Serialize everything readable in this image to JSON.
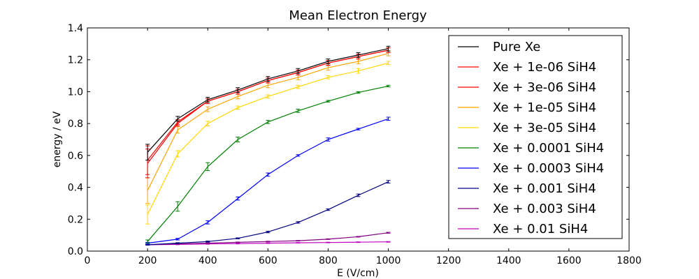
{
  "chart_data": {
    "type": "line",
    "title": "Mean Electron Energy",
    "xlabel": "E (V/cm)",
    "ylabel": "energy / eV",
    "xlim": [
      0,
      1800
    ],
    "ylim": [
      0.0,
      1.4
    ],
    "xticks": [
      0,
      200,
      400,
      600,
      800,
      1000,
      1200,
      1400,
      1600,
      1800
    ],
    "yticks": [
      0.0,
      0.2,
      0.4,
      0.6,
      0.8,
      1.0,
      1.2,
      1.4
    ],
    "xtick_labels": [
      "0",
      "200",
      "400",
      "600",
      "800",
      "1000",
      "1200",
      "1400",
      "1600",
      "1800"
    ],
    "ytick_labels": [
      "0.0",
      "0.2",
      "0.4",
      "0.6",
      "0.8",
      "1.0",
      "1.2",
      "1.4"
    ],
    "grid": false,
    "legend_position": "right",
    "x": [
      200,
      300,
      400,
      500,
      600,
      700,
      800,
      900,
      1000
    ],
    "series": [
      {
        "name": "Pure Xe",
        "color": "#000000",
        "values": [
          0.62,
          0.83,
          0.95,
          1.01,
          1.08,
          1.13,
          1.19,
          1.23,
          1.27
        ],
        "errors": [
          0.05,
          0.015,
          0.015,
          0.015,
          0.015,
          0.015,
          0.015,
          0.015,
          0.015
        ]
      },
      {
        "name": "Xe + 1e-06 SiH4",
        "color": "#ff0000",
        "values": [
          0.57,
          0.81,
          0.94,
          1.0,
          1.07,
          1.12,
          1.18,
          1.22,
          1.26
        ],
        "errors": [
          0.09,
          0.015,
          0.015,
          0.015,
          0.015,
          0.015,
          0.015,
          0.015,
          0.015
        ]
      },
      {
        "name": "Xe + 3e-06 SiH4",
        "color": "#ff0000",
        "values": [
          0.55,
          0.8,
          0.94,
          1.0,
          1.07,
          1.12,
          1.18,
          1.22,
          1.26
        ],
        "errors": [
          0.09,
          0.015,
          0.015,
          0.015,
          0.015,
          0.015,
          0.015,
          0.015,
          0.015
        ]
      },
      {
        "name": "Xe + 1e-05 SiH4",
        "color": "#ffa500",
        "values": [
          0.38,
          0.76,
          0.89,
          0.97,
          1.04,
          1.09,
          1.15,
          1.19,
          1.24
        ],
        "errors": [
          0.08,
          0.02,
          0.015,
          0.015,
          0.015,
          0.015,
          0.015,
          0.015,
          0.015
        ]
      },
      {
        "name": "Xe + 3e-05 SiH4",
        "color": "#ffd700",
        "values": [
          0.23,
          0.61,
          0.8,
          0.9,
          0.97,
          1.03,
          1.09,
          1.13,
          1.18
        ],
        "errors": [
          0.06,
          0.02,
          0.015,
          0.01,
          0.01,
          0.01,
          0.01,
          0.015,
          0.01
        ]
      },
      {
        "name": "Xe + 0.0001 SiH4",
        "color": "#008000",
        "values": [
          0.06,
          0.28,
          0.53,
          0.7,
          0.81,
          0.88,
          0.94,
          0.995,
          1.035
        ],
        "errors": [
          0.01,
          0.03,
          0.025,
          0.015,
          0.01,
          0.01,
          0.005,
          0.005,
          0.005
        ]
      },
      {
        "name": "Xe + 0.0003 SiH4",
        "color": "#0000ff",
        "values": [
          0.05,
          0.075,
          0.18,
          0.33,
          0.48,
          0.6,
          0.7,
          0.765,
          0.83
        ],
        "errors": [
          0.005,
          0.005,
          0.01,
          0.01,
          0.01,
          0.005,
          0.01,
          0.005,
          0.01
        ]
      },
      {
        "name": "Xe + 0.001 SiH4",
        "color": "#000080",
        "values": [
          0.04,
          0.05,
          0.06,
          0.08,
          0.12,
          0.18,
          0.26,
          0.35,
          0.435
        ],
        "errors": [
          0.003,
          0.003,
          0.003,
          0.003,
          0.005,
          0.005,
          0.005,
          0.008,
          0.008
        ]
      },
      {
        "name": "Xe + 0.003 SiH4",
        "color": "#800080",
        "values": [
          0.04,
          0.045,
          0.05,
          0.055,
          0.06,
          0.065,
          0.075,
          0.09,
          0.115
        ],
        "errors": [
          0.002,
          0.002,
          0.002,
          0.002,
          0.002,
          0.002,
          0.002,
          0.002,
          0.003
        ]
      },
      {
        "name": "Xe + 0.01 SiH4",
        "color": "#bf00bf",
        "values": [
          0.04,
          0.042,
          0.045,
          0.047,
          0.05,
          0.052,
          0.054,
          0.056,
          0.058
        ],
        "errors": [
          0.002,
          0.002,
          0.002,
          0.002,
          0.002,
          0.002,
          0.002,
          0.002,
          0.002
        ]
      }
    ]
  }
}
